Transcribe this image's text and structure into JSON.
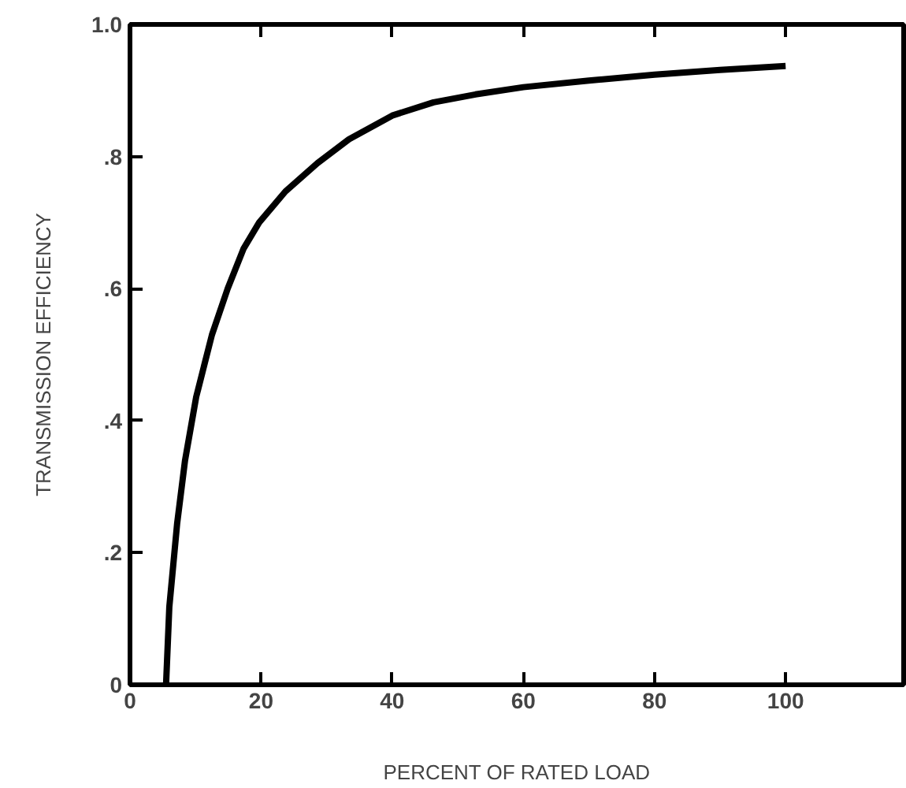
{
  "chart_data": {
    "type": "line",
    "xlabel": "PERCENT OF RATED LOAD",
    "ylabel": "TRANSMISSION EFFICIENCY",
    "x": [
      5.5,
      6.0,
      7.2,
      8.4,
      10.1,
      12.5,
      14.9,
      17.3,
      19.7,
      23.7,
      28.6,
      33.4,
      40,
      46.3,
      52.7,
      60,
      70,
      80,
      90,
      100
    ],
    "series": [
      {
        "color": "#000000",
        "values": [
          0,
          0.118,
          0.245,
          0.34,
          0.436,
          0.53,
          0.6,
          0.66,
          0.7,
          0.747,
          0.79,
          0.826,
          0.862,
          0.882,
          0.894,
          0.905,
          0.915,
          0.924,
          0.931,
          0.937
        ]
      }
    ],
    "xlim": [
      0,
      118
    ],
    "ylim": [
      0,
      1.0
    ],
    "xticks": [
      0,
      20,
      40,
      60,
      80,
      100
    ],
    "yticks": [
      0,
      {
        "value": 0.2,
        "label": ".2"
      },
      {
        "value": 0.4,
        "label": ".4"
      },
      {
        "value": 0.6,
        "label": ".6"
      },
      {
        "value": 0.8,
        "label": ".8"
      },
      {
        "value": 1.0,
        "label": "1.0"
      }
    ],
    "grid": false,
    "marker": "none",
    "line_style": "solid"
  }
}
